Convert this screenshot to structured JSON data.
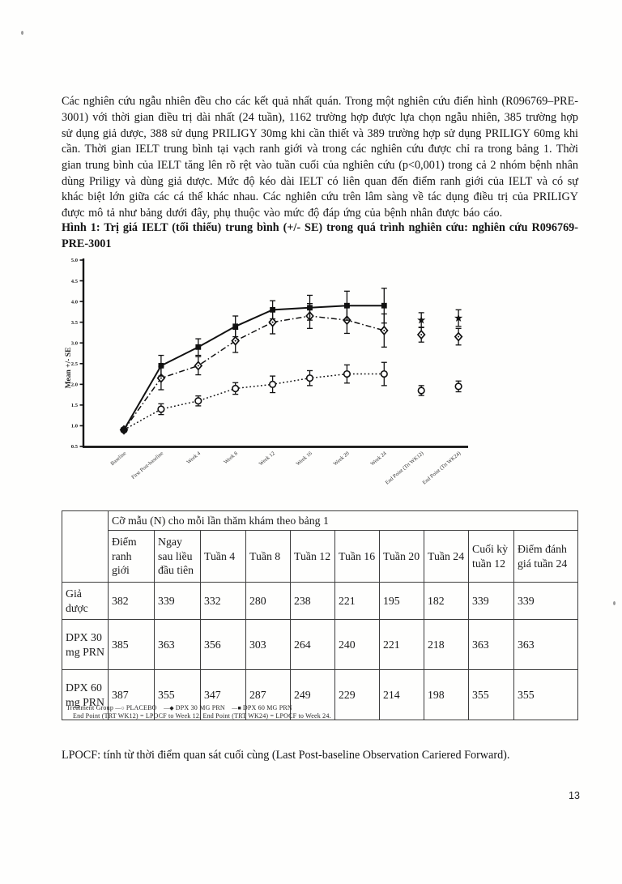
{
  "page": {
    "number": "13"
  },
  "paragraph": "Các nghiên cứu ngẫu nhiên đều cho các kết quả nhất quán. Trong một nghiên cứu điển hình (R096769–PRE-3001) với thời gian điều trị dài nhất (24 tuần), 1162 trường hợp được lựa chọn ngẫu nhiên, 385 trường hợp sử dụng giả dược, 388 sử dụng PRILIGY 30mg khi cần thiết và 389 trường hợp sử dụng PRILIGY 60mg khi cần. Thời gian IELT trung bình tại vạch ranh giới và trong các nghiên cứu được chỉ ra trong bảng 1. Thời gian trung bình của IELT tăng lên rõ rệt vào tuần cuối của nghiên cứu (p<0,001) trong cả 2 nhóm bệnh nhân dùng Priligy và dùng giả dược. Mức độ kéo dài IELT có liên quan đến điểm ranh giới của IELT và có sự khác biệt lớn giữa các cá thể khác nhau. Các nghiên cứu trên lâm sàng về tác dụng điều trị của PRILIGY được mô tả như bảng dưới đây, phụ thuộc vào mức độ đáp ứng của bệnh nhân được báo cáo.",
  "figure_heading": "Hình 1: Trị giá IELT (tối thiểu) trung bình (+/- SE) trong quá trình nghiên cứu: nghiên cứu R096769-PRE-3001",
  "chart_data": {
    "type": "line",
    "title": "",
    "xlabel": "",
    "ylabel": "Mean +/- SE",
    "ylim": [
      0.5,
      5.0
    ],
    "yticks": [
      5.0,
      4.5,
      4.0,
      3.5,
      3.0,
      2.5,
      2.0,
      1.5,
      1.0,
      0.5
    ],
    "grid": false,
    "legend_position": "below-table",
    "categories": [
      "Baseline",
      "First Post-baseline",
      "Week 4",
      "Week 8",
      "Week 12",
      "Week 16",
      "Week 20",
      "Week 24",
      "End Point (Trt WK12)",
      "End Point (Trt WK24)"
    ],
    "connected_points": 8,
    "series": [
      {
        "name": "PLACEBO",
        "marker": "circle",
        "line": "dotted",
        "values": [
          0.9,
          1.4,
          1.6,
          1.9,
          2.0,
          2.15,
          2.25,
          2.25,
          1.85,
          1.95
        ],
        "se": [
          0.04,
          0.13,
          0.12,
          0.14,
          0.2,
          0.18,
          0.22,
          0.28,
          0.12,
          0.13
        ]
      },
      {
        "name": "DPX 30 MG PRN",
        "marker": "diamond",
        "line": "dashdot",
        "values": [
          0.9,
          2.15,
          2.45,
          3.05,
          3.5,
          3.65,
          3.55,
          3.3,
          3.2,
          3.15
        ],
        "se": [
          0.04,
          0.28,
          0.22,
          0.28,
          0.28,
          0.3,
          0.32,
          0.4,
          0.18,
          0.2
        ]
      },
      {
        "name": "DPX 60 MG PRN",
        "marker": "square",
        "end_marker": "star",
        "line": "solid",
        "values": [
          0.9,
          2.45,
          2.9,
          3.4,
          3.8,
          3.85,
          3.9,
          3.9,
          3.55,
          3.6
        ],
        "se": [
          0.04,
          0.25,
          0.2,
          0.25,
          0.22,
          0.3,
          0.35,
          0.42,
          0.18,
          0.2
        ]
      }
    ]
  },
  "table": {
    "span_header": "Cỡ mẫu (N) cho mỗi lần thăm khám theo bảng 1",
    "columns": [
      "Điểm ranh giới",
      "Ngay sau liều đầu tiên",
      "Tuần 4",
      "Tuần 8",
      "Tuần 12",
      "Tuần 16",
      "Tuần 20",
      "Tuần 24",
      "Cuối kỳ tuần 12",
      "Điểm đánh giá tuần 24"
    ],
    "rows": [
      {
        "label": "Giả dược",
        "values": [
          382,
          339,
          332,
          280,
          238,
          221,
          195,
          182,
          339,
          339
        ]
      },
      {
        "label": "DPX 30 mg PRN",
        "values": [
          385,
          363,
          356,
          303,
          264,
          240,
          221,
          218,
          363,
          363
        ]
      },
      {
        "label": "DPX 60 mg PRN",
        "values": [
          387,
          355,
          347,
          287,
          249,
          229,
          214,
          198,
          355,
          355
        ]
      }
    ]
  },
  "figure_legend": {
    "title": "Treatment Group",
    "items": [
      {
        "label": "PLACEBO",
        "marker": "circle"
      },
      {
        "label": "DPX 30 MG PRN",
        "marker": "diamond"
      },
      {
        "label": "DPX 60 MG PRN",
        "marker": "square"
      }
    ],
    "line2": "End Point (TRT WK12) = LPOCF to Week 12.  End Point (TRT WK24) = LPOCF to Week 24."
  },
  "footnote": "LPOCF: tính từ thời điểm quan sát cuối cùng (Last Post-baseline Observation Cariered Forward).",
  "colors": {
    "ink": "#111111",
    "paper": "#fefefd"
  }
}
